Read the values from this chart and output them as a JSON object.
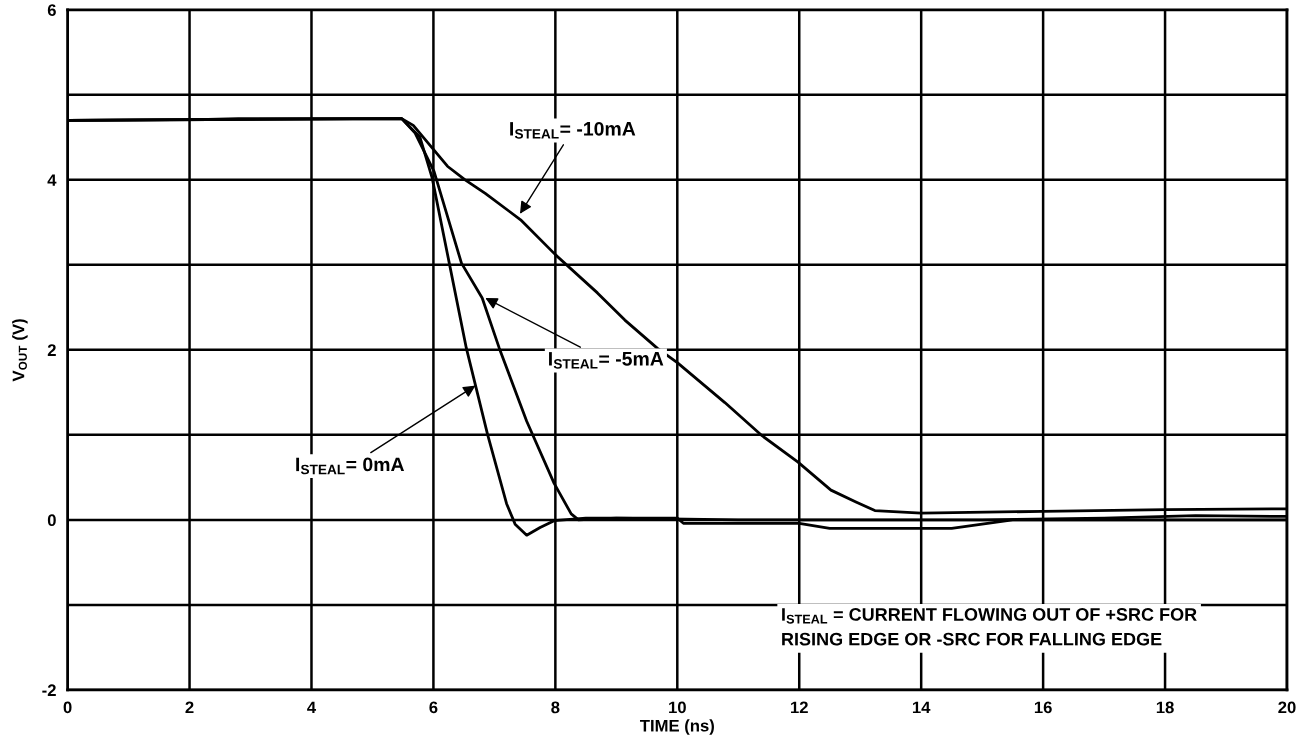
{
  "chart_data": {
    "type": "line",
    "xlabel": "TIME (ns)",
    "ylabel": "V$_{OUT}$ (V)",
    "xlim": [
      0,
      20
    ],
    "ylim": [
      -2,
      6
    ],
    "xticks": [
      0,
      2,
      4,
      6,
      8,
      10,
      12,
      14,
      16,
      18,
      20
    ],
    "yticks": [
      -2,
      {
        "value": -1,
        "label": null
      },
      0,
      {
        "value": 1,
        "label": null
      },
      2,
      {
        "value": 3,
        "label": null
      },
      4,
      {
        "value": 5,
        "label": null
      },
      6
    ],
    "grid": true,
    "legend": false,
    "marker": "none",
    "line_style": "solid",
    "series": [
      {
        "color": "#000000",
        "x": [
          0,
          2.3,
          2.8,
          5.48,
          5.78,
          5.98,
          6.26,
          6.54,
          6.89,
          7.2,
          7.34,
          7.53,
          7.75,
          7.98,
          8.5,
          10,
          10.1,
          12,
          12.5,
          14.5,
          15.5,
          20
        ],
        "values": [
          4.7,
          4.71,
          4.72,
          4.72,
          4.5,
          4.02,
          3.02,
          2.02,
          1.0,
          0.19,
          -0.05,
          -0.18,
          -0.09,
          -0.01,
          0.02,
          0.02,
          -0.04,
          -0.04,
          -0.1,
          -0.1,
          0.0,
          0.0
        ]
      },
      {
        "color": "#000000",
        "x": [
          0,
          5.48,
          5.7,
          6.01,
          6.46,
          6.8,
          7.08,
          7.53,
          7.98,
          8.26,
          8.38,
          9,
          11,
          13,
          15,
          17,
          18.5,
          20
        ],
        "values": [
          4.7,
          4.72,
          4.55,
          4.1,
          3.02,
          2.61,
          2.02,
          1.16,
          0.43,
          0.07,
          0.0,
          0.02,
          0.0,
          0.0,
          0.0,
          0.02,
          0.05,
          0.04
        ]
      },
      {
        "color": "#000000",
        "x": [
          0,
          5.48,
          5.67,
          6.23,
          6.52,
          6.85,
          7.43,
          8.0,
          8.69,
          9.14,
          9.67,
          10.0,
          10.78,
          11.39,
          11.98,
          12.52,
          12.93,
          13.24,
          14,
          16,
          18,
          20
        ],
        "values": [
          4.7,
          4.72,
          4.64,
          4.16,
          4.0,
          3.84,
          3.53,
          3.12,
          2.67,
          2.35,
          2.02,
          1.85,
          1.38,
          0.99,
          0.68,
          0.35,
          0.21,
          0.11,
          0.08,
          0.1,
          0.12,
          0.13
        ]
      }
    ],
    "annotations": [
      {
        "text": "I$_{STEAL}$= -10mA",
        "x": 7.42,
        "y": 3.6
      },
      {
        "text": "I$_{STEAL}$= -5mA",
        "x": 6.85,
        "y": 2.61
      },
      {
        "text": "I$_{STEAL}$= 0mA",
        "x": 6.69,
        "y": 1.58
      },
      "I$_{STEAL}$ = CURRENT FLOWING OUT OF +SRC FOR\nRISING EDGE OR -SRC FOR FALLING EDGE"
    ]
  }
}
